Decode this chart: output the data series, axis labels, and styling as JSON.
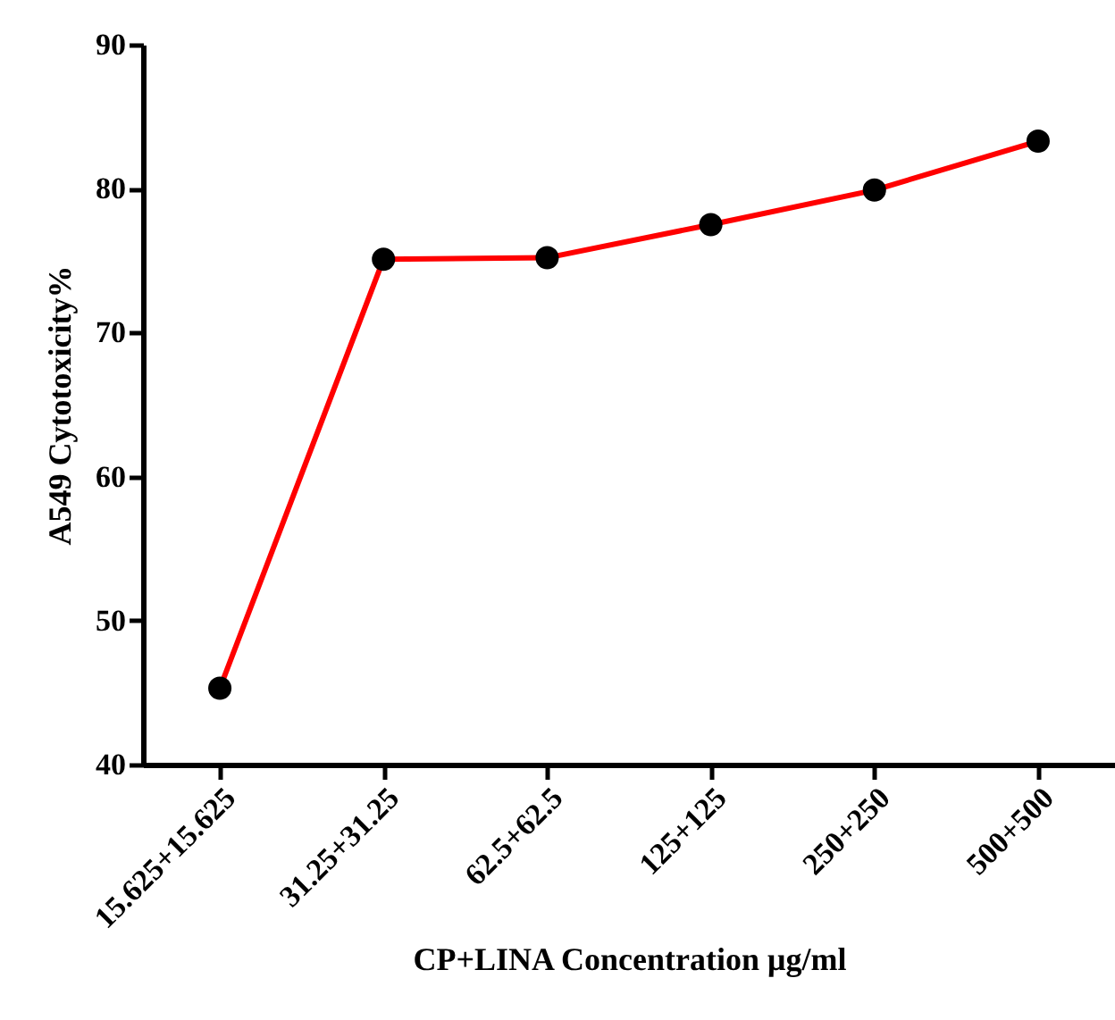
{
  "chart_data": {
    "type": "line",
    "xlabel": "CP+LINA Concentration μg/ml",
    "ylabel": "A549 Cytotoxicity%",
    "categories": [
      "15.625+15.625",
      "31.25+31.25",
      "62.5+62.5",
      "125+125",
      "250+250",
      "500+500"
    ],
    "series": [
      {
        "color": "#ff0000",
        "values": [
          45.3,
          75.1,
          75.2,
          77.5,
          79.9,
          83.3
        ]
      }
    ],
    "ylim": [
      40,
      90
    ],
    "yticks": [
      40,
      50,
      60,
      70,
      80,
      90
    ],
    "grid": false,
    "legend": false,
    "marker": "circle",
    "line_style": "solid"
  }
}
